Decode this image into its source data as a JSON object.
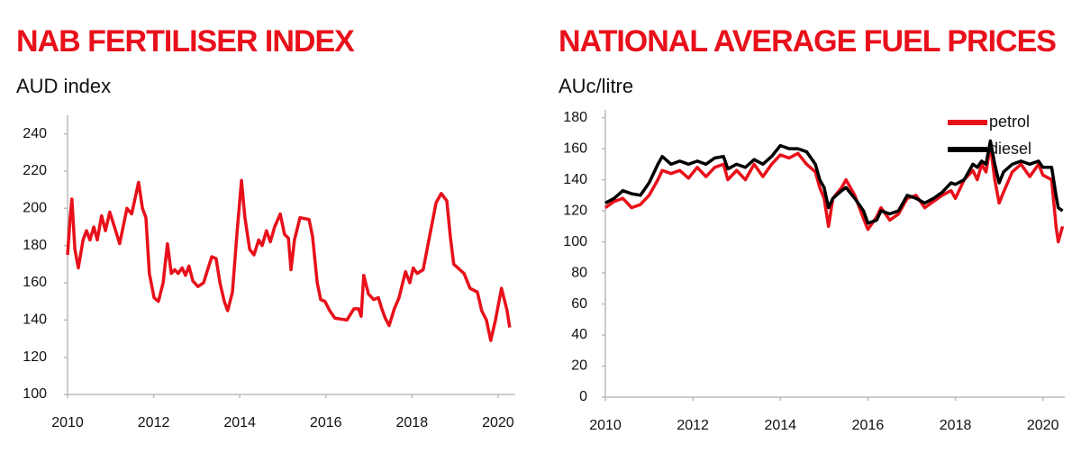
{
  "chart_data": [
    {
      "type": "line",
      "title": "NAB FERTILISER INDEX",
      "subtitle": "AUD index",
      "color": "#e8101a",
      "x": [
        2010.0,
        2010.06,
        2010.1,
        2010.17,
        2010.25,
        2010.36,
        2010.44,
        2010.52,
        2010.61,
        2010.69,
        2010.79,
        2010.88,
        2010.98,
        2011.09,
        2011.21,
        2011.38,
        2011.49,
        2011.65,
        2011.74,
        2011.82,
        2011.9,
        2012.01,
        2012.11,
        2012.22,
        2012.32,
        2012.41,
        2012.49,
        2012.57,
        2012.66,
        2012.74,
        2012.82,
        2012.91,
        2013.03,
        2013.16,
        2013.24,
        2013.35,
        2013.45,
        2013.54,
        2013.64,
        2013.72,
        2013.83,
        2013.93,
        2014.04,
        2014.12,
        2014.23,
        2014.33,
        2014.44,
        2014.52,
        2014.62,
        2014.71,
        2014.81,
        2014.94,
        2015.04,
        2015.13,
        2015.19,
        2015.27,
        2015.4,
        2015.61,
        2015.69,
        2015.8,
        2015.88,
        2015.98,
        2016.09,
        2016.21,
        2016.49,
        2016.65,
        2016.76,
        2016.82,
        2016.88,
        2016.99,
        2017.11,
        2017.22,
        2017.3,
        2017.38,
        2017.47,
        2017.59,
        2017.7,
        2017.85,
        2017.95,
        2018.03,
        2018.12,
        2018.26,
        2018.41,
        2018.56,
        2018.68,
        2018.81,
        2018.89,
        2018.97,
        2019.21,
        2019.35,
        2019.52,
        2019.62,
        2019.73,
        2019.83,
        2019.94,
        2020.08,
        2020.21,
        2020.27
      ],
      "values": [
        175,
        195,
        205,
        178,
        168,
        183,
        188,
        183,
        190,
        183,
        196,
        188,
        198,
        190,
        181,
        200,
        197,
        214,
        200,
        195,
        165,
        152,
        150,
        160,
        181,
        165,
        167,
        165,
        168,
        164,
        169,
        161,
        158,
        160,
        166,
        174,
        173,
        160,
        150,
        145,
        155,
        185,
        215,
        195,
        178,
        175,
        183,
        180,
        188,
        182,
        190,
        197,
        186,
        184,
        167,
        183,
        195,
        194,
        185,
        160,
        151,
        150,
        145,
        141,
        140,
        146,
        146,
        142,
        164,
        154,
        151,
        152,
        146,
        141,
        137,
        146,
        152,
        166,
        160,
        168,
        165,
        167,
        185,
        203,
        208,
        204,
        185,
        170,
        165,
        157,
        155,
        145,
        140,
        129,
        140,
        157,
        145,
        136
      ],
      "xlim": [
        2010,
        2020.4
      ],
      "ylim": [
        100,
        250
      ],
      "xticks": [
        2010,
        2012,
        2014,
        2016,
        2018,
        2020
      ],
      "yticks": [
        100,
        120,
        140,
        160,
        180,
        200,
        220,
        240
      ]
    },
    {
      "type": "line",
      "title": "NATIONAL AVERAGE FUEL PRICES",
      "subtitle": "AUc/litre",
      "legend": "upper right",
      "x": [
        2010.0,
        2010.2,
        2010.4,
        2010.6,
        2010.8,
        2011.0,
        2011.2,
        2011.3,
        2011.5,
        2011.7,
        2011.9,
        2012.1,
        2012.3,
        2012.5,
        2012.7,
        2012.8,
        2013.0,
        2013.2,
        2013.4,
        2013.6,
        2013.8,
        2014.0,
        2014.2,
        2014.4,
        2014.6,
        2014.8,
        2014.9,
        2015.0,
        2015.1,
        2015.2,
        2015.4,
        2015.5,
        2015.7,
        2015.9,
        2016.0,
        2016.2,
        2016.3,
        2016.5,
        2016.7,
        2016.9,
        2017.1,
        2017.3,
        2017.5,
        2017.7,
        2017.9,
        2018.0,
        2018.2,
        2018.4,
        2018.5,
        2018.6,
        2018.7,
        2018.8,
        2018.9,
        2019.0,
        2019.1,
        2019.3,
        2019.5,
        2019.7,
        2019.9,
        2020.0,
        2020.2,
        2020.3,
        2020.35,
        2020.45
      ],
      "series": [
        {
          "name": "petrol",
          "color": "#e8101a",
          "values": [
            122,
            126,
            128,
            122,
            124,
            130,
            140,
            146,
            144,
            146,
            141,
            148,
            142,
            148,
            150,
            140,
            146,
            140,
            150,
            142,
            150,
            156,
            154,
            157,
            150,
            145,
            135,
            128,
            110,
            128,
            135,
            140,
            130,
            115,
            108,
            116,
            122,
            114,
            118,
            128,
            130,
            122,
            126,
            130,
            133,
            128,
            140,
            146,
            140,
            150,
            145,
            162,
            140,
            125,
            132,
            145,
            150,
            142,
            150,
            143,
            140,
            110,
            100,
            110
          ]
        },
        {
          "name": "diesel",
          "color": "#000000",
          "values": [
            125,
            128,
            133,
            131,
            130,
            138,
            150,
            155,
            150,
            152,
            150,
            152,
            150,
            154,
            155,
            147,
            150,
            148,
            153,
            150,
            155,
            162,
            160,
            160,
            158,
            150,
            140,
            135,
            122,
            128,
            133,
            135,
            128,
            120,
            112,
            114,
            120,
            118,
            120,
            130,
            128,
            125,
            128,
            132,
            138,
            137,
            140,
            150,
            148,
            152,
            150,
            165,
            150,
            138,
            145,
            150,
            152,
            150,
            152,
            148,
            148,
            130,
            122,
            120
          ]
        }
      ],
      "xlim": [
        2010,
        2020.5
      ],
      "ylim": [
        0,
        185
      ],
      "xticks": [
        2010,
        2012,
        2014,
        2016,
        2018,
        2020
      ],
      "yticks": [
        0,
        20,
        40,
        60,
        80,
        100,
        120,
        140,
        160,
        180
      ]
    }
  ]
}
